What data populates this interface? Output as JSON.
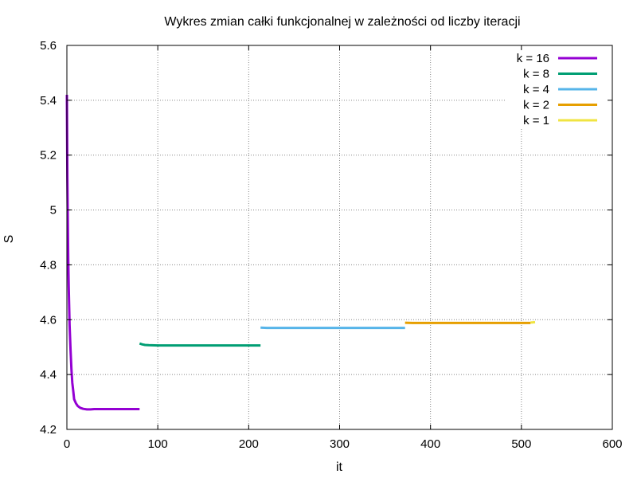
{
  "chart_data": {
    "type": "line",
    "title": "Wykres zmian całki funkcjonalnej w zależności od liczby iteracji",
    "xlabel": "it",
    "ylabel": "S",
    "xlim": [
      0,
      600
    ],
    "ylim": [
      4.2,
      5.6
    ],
    "xticks": [
      0,
      100,
      200,
      300,
      400,
      500,
      600
    ],
    "yticks": [
      4.2,
      4.4,
      4.6,
      4.8,
      5,
      5.2,
      5.4,
      5.6
    ],
    "grid": true,
    "legend_position": "top-right",
    "series": [
      {
        "name": "k = 16",
        "color": "#9400d3",
        "x": [
          0,
          0.5,
          1,
          1.5,
          2,
          3,
          4,
          5,
          6,
          7,
          8,
          10,
          12,
          15,
          18,
          22,
          26,
          30,
          40,
          60,
          80
        ],
        "y": [
          5.42,
          5.12,
          4.98,
          4.82,
          4.72,
          4.58,
          4.49,
          4.42,
          4.37,
          4.34,
          4.31,
          4.295,
          4.285,
          4.278,
          4.275,
          4.273,
          4.273,
          4.274,
          4.274,
          4.274,
          4.274
        ]
      },
      {
        "name": "k = 8",
        "color": "#009e73",
        "x": [
          80,
          83,
          86,
          90,
          100,
          150,
          200,
          213
        ],
        "y": [
          4.513,
          4.51,
          4.508,
          4.507,
          4.506,
          4.506,
          4.506,
          4.506
        ]
      },
      {
        "name": "k = 4",
        "color": "#56b4e9",
        "x": [
          213,
          220,
          250,
          300,
          350,
          372
        ],
        "y": [
          4.571,
          4.57,
          4.57,
          4.57,
          4.57,
          4.57
        ]
      },
      {
        "name": "k = 2",
        "color": "#e69f00",
        "x": [
          372,
          380,
          420,
          460,
          500,
          510
        ],
        "y": [
          4.589,
          4.588,
          4.588,
          4.588,
          4.588,
          4.588
        ]
      },
      {
        "name": "k = 1",
        "color": "#f0e442",
        "x": [
          510,
          512,
          515
        ],
        "y": [
          4.59,
          4.59,
          4.591
        ]
      }
    ]
  }
}
